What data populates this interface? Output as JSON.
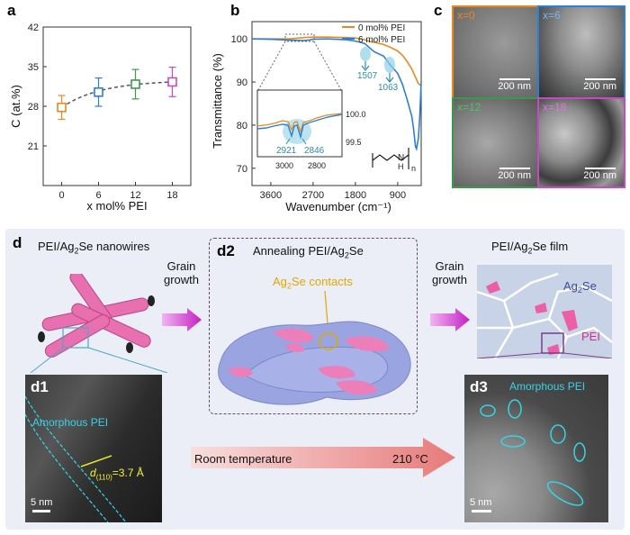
{
  "colors": {
    "orange": "#e8891d",
    "blue": "#2b7fd6",
    "green": "#3a9a4a",
    "magenta": "#c54bc3",
    "teal": "#2aa6b5",
    "gold": "#e0a800",
    "cyan": "#35d4e8"
  },
  "panel_a": {
    "label": "a"
  },
  "panel_b": {
    "label": "b",
    "inset_values": [
      "100.0",
      "99.5"
    ],
    "inset_ticks": [
      "3000",
      "2800"
    ],
    "annotations": [
      "1507",
      "1063",
      "2921",
      "2846"
    ],
    "chem_sub": "n"
  },
  "panel_c": {
    "label": "c",
    "tiles": [
      {
        "x": "x=0",
        "scale": "200 nm"
      },
      {
        "x": "x=6",
        "scale": "200 nm"
      },
      {
        "x": "x=12",
        "scale": "200 nm"
      },
      {
        "x": "x=18",
        "scale": "200 nm"
      }
    ]
  },
  "panel_d": {
    "label": "d",
    "nanowires_title_pre": "PEI/Ag",
    "nanowires_title_sub": "2",
    "nanowires_title_post": "Se nanowires",
    "grain_growth_1": "Grain\ngrowth",
    "d2_label": "d2",
    "d2_title_pre": "Annealing PEI/Ag",
    "d2_title_sub": "2",
    "d2_title_post": "Se",
    "contacts_pre": "Ag",
    "contacts_sub": "2",
    "contacts_post": "Se contacts",
    "grain_growth_2": "Grain\ngrowth",
    "film_title_pre": "PEI/Ag",
    "film_title_sub": "2",
    "film_title_post": "Se film",
    "film_ag2se_pre": "Ag",
    "film_ag2se_sub": "2",
    "film_ag2se_post": "Se",
    "film_pei": "PEI",
    "d1_label": "d1",
    "d1_amorphous": "Amorphous PEI",
    "d1_d_pre": "d",
    "d1_d_sub": "(110)",
    "d1_d_post": "=3.7 Å",
    "d1_scale": "5 nm",
    "arrow_left": "Room temperature",
    "arrow_right": "210 °C",
    "d3_label": "d3",
    "d3_amorphous": "Amorphous PEI",
    "d3_scale": "5 nm"
  },
  "chart_data": [
    {
      "type": "scatter",
      "title": "",
      "xlabel": "x mol% PEI",
      "ylabel": "C (at.%)",
      "x": [
        0,
        6,
        12,
        18
      ],
      "x_ticks": [
        0,
        6,
        12,
        18
      ],
      "y": [
        27.8,
        30.5,
        31.9,
        32.3
      ],
      "yerr": [
        2.1,
        2.5,
        2.6,
        2.6
      ],
      "ylim": [
        14,
        42
      ],
      "y_ticks": [
        21,
        28,
        35,
        42
      ],
      "colors": [
        "#e8891d",
        "#2b7fd6",
        "#3a9a4a",
        "#c54bc3"
      ],
      "fit": "dashed"
    },
    {
      "type": "line",
      "title": "",
      "xlabel": "Wavenumber (cm⁻¹)",
      "ylabel": "Transmittance (%)",
      "x_ticks": [
        3600,
        2700,
        1800,
        900
      ],
      "y_ticks": [
        70,
        80,
        90,
        100
      ],
      "xlim": [
        4000,
        400
      ],
      "ylim": [
        66,
        104
      ],
      "series": [
        {
          "name": "0 mol% PEI",
          "color": "#e8891d",
          "x": [
            4000,
            3600,
            3200,
            2900,
            2700,
            2400,
            2000,
            1800,
            1600,
            1507,
            1400,
            1200,
            1063,
            900,
            800,
            700,
            600,
            500,
            460,
            400
          ],
          "y": [
            100,
            100,
            100,
            100.3,
            100.4,
            100.4,
            100.3,
            100.2,
            99.8,
            99.4,
            99.2,
            98.7,
            98.1,
            97.2,
            96.2,
            94.8,
            93.0,
            90.6,
            89.6,
            89.2
          ]
        },
        {
          "name": "6 mol% PEI",
          "color": "#2b7fd6",
          "x": [
            4000,
            3600,
            3200,
            2900,
            2800,
            2700,
            2400,
            2000,
            1800,
            1600,
            1507,
            1400,
            1200,
            1063,
            900,
            800,
            700,
            600,
            560,
            520,
            500,
            460,
            430,
            400
          ],
          "y": [
            100,
            99.9,
            99.7,
            99.6,
            99.7,
            99.9,
            100,
            99.8,
            99.5,
            98.9,
            98.0,
            97.0,
            96.0,
            94.0,
            92.0,
            89.5,
            86.0,
            82.0,
            79.0,
            75.0,
            74.5,
            77.0,
            82.0,
            90.0
          ]
        }
      ]
    }
  ]
}
